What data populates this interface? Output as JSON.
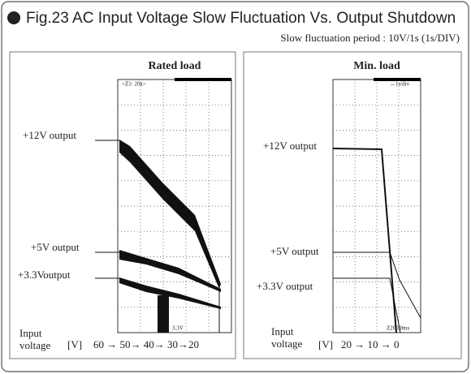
{
  "header": {
    "title": "Fig.23 AC Input Voltage Slow Fluctuation Vs. Output Shutdown",
    "subtitle": "Slow fluctuation period : 10V/1s (1s/DIV)"
  },
  "panels": [
    {
      "title": "Rated load",
      "outputs": [
        "+12V output",
        "+5V output",
        "+3.3Voutput"
      ],
      "input_label": "Input voltage",
      "unit": "[V]",
      "sequence": "60 → 50→ 40→ 30→20",
      "scope_notes": [
        "<Z1: 20k>",
        "3.3V"
      ]
    },
    {
      "title": "Min. load",
      "outputs": [
        "+12V output",
        "+5V output",
        "+3.3V output"
      ],
      "input_label": "Input voltage",
      "unit": "[V]",
      "sequence": "20 → 10 → 0",
      "scope_notes": [
        "↔1s/div",
        "Z200.0ms"
      ]
    }
  ]
}
